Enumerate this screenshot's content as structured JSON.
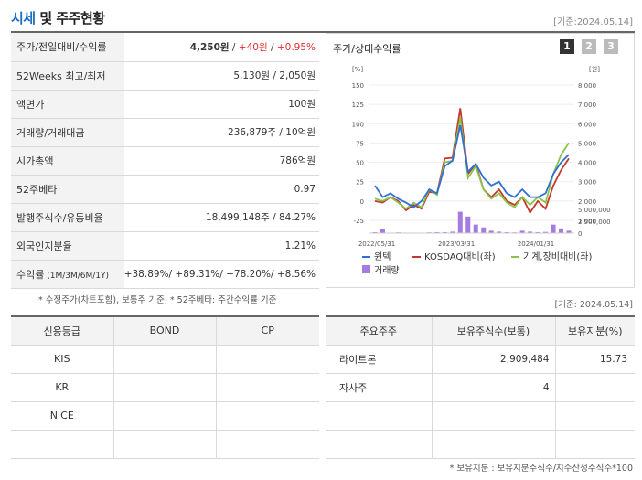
{
  "header": {
    "title_part1": "시세",
    "title_part2": " 및 주주현황",
    "date": "[기준:2024.05.14]"
  },
  "info_rows": [
    {
      "label": "주가/전일대비/수익률",
      "price": "4,250원",
      "sep1": " / ",
      "change": "+40원",
      "sep2": " / ",
      "rate": "+0.95%"
    },
    {
      "label": "52Weeks 최고/최저",
      "value": "5,130원 / 2,050원"
    },
    {
      "label": "액면가",
      "value": "100원"
    },
    {
      "label": "거래량/거래대금",
      "value": "236,879주 / 10억원"
    },
    {
      "label": "시가총액",
      "value": "786억원"
    },
    {
      "label": "52주베타",
      "value": "0.97"
    },
    {
      "label": "발행주식수/유동비율",
      "value": "18,499,148주 / 84.27%"
    },
    {
      "label": "외국인지분율",
      "value": "1.21%"
    },
    {
      "label": "수익률",
      "label_sub": " (1M/3M/6M/1Y)",
      "returns": "+38.89%/ +89.31%/ +78.20%/ +8.56%"
    }
  ],
  "note1": "* 수정주가(차트포함), 보통주 기준, * 52주베타: 주간수익률 기준",
  "chart_panel": {
    "title": "주가/상대수익률",
    "buttons": [
      "1",
      "2",
      "3"
    ],
    "left_unit": "[%]",
    "right_unit": "[원]",
    "left_ticks": [
      "150",
      "125",
      "100",
      "75",
      "50",
      "25",
      "0",
      "-25"
    ],
    "right_ticks": [
      "8,000",
      "7,000",
      "6,000",
      "5,000",
      "4,000",
      "3,000",
      "2,000",
      "1,000"
    ],
    "volume_ticks": [
      "5,000,000",
      "2,500,000",
      "0"
    ],
    "x_ticks": [
      "2022/05/31",
      "2023/03/31",
      "2024/01/31"
    ],
    "legend": [
      "윈텍",
      "KOSDAQ대비(좌)",
      "기계,장비대비(좌)",
      "거래량"
    ],
    "colors": {
      "stock": "#2f6fd6",
      "kosdaq": "#c0392b",
      "sector": "#8bc34a",
      "volume": "#a57be0"
    }
  },
  "chart_data": {
    "type": "line",
    "x_ticks": [
      "2022/05/31",
      "2023/03/31",
      "2024/01/31"
    ],
    "ylim_left": [
      -25,
      150
    ],
    "ylim_right": [
      1000,
      8000
    ],
    "ylim_volume": [
      0,
      5000000
    ],
    "series": [
      {
        "name": "윈텍",
        "values": [
          20,
          5,
          10,
          3,
          -2,
          -8,
          0,
          15,
          10,
          45,
          52,
          98,
          38,
          48,
          30,
          20,
          25,
          10,
          5,
          15,
          5,
          5,
          10,
          35,
          50,
          60
        ]
      },
      {
        "name": "KOSDAQ대비(좌)",
        "values": [
          0,
          -2,
          5,
          0,
          -12,
          -5,
          -10,
          12,
          10,
          55,
          56,
          120,
          35,
          48,
          15,
          5,
          15,
          0,
          -5,
          5,
          -15,
          0,
          -10,
          20,
          40,
          55
        ]
      },
      {
        "name": "기계,장비대비(좌)",
        "values": [
          3,
          0,
          5,
          -2,
          -10,
          -2,
          -8,
          15,
          8,
          50,
          52,
          108,
          30,
          45,
          15,
          3,
          10,
          -2,
          -8,
          5,
          -5,
          5,
          -2,
          35,
          60,
          75
        ]
      },
      {
        "name": "거래량",
        "values": [
          200000,
          800000,
          100000,
          150000,
          100000,
          100000,
          100000,
          150000,
          200000,
          200000,
          300000,
          4500000,
          3500000,
          1800000,
          1200000,
          500000,
          300000,
          200000,
          150000,
          500000,
          300000,
          200000,
          250000,
          1800000,
          1000000,
          500000
        ]
      }
    ]
  },
  "note2": "[기준: 2024.05.14]",
  "credit_table": {
    "headers": [
      "신용등급",
      "BOND",
      "CP"
    ],
    "rows": [
      [
        "KIS",
        "",
        ""
      ],
      [
        "KR",
        "",
        ""
      ],
      [
        "NICE",
        "",
        ""
      ],
      [
        "",
        "",
        ""
      ]
    ]
  },
  "holder_table": {
    "headers": [
      "주요주주",
      "보유주식수(보통)",
      "보유지분(%)"
    ],
    "rows": [
      [
        "라이트론",
        "2,909,484",
        "15.73"
      ],
      [
        "자사주",
        "4",
        ""
      ],
      [
        "",
        "",
        ""
      ],
      [
        "",
        "",
        ""
      ]
    ]
  },
  "note3": "* 보유지분 : 보유지분주식수/지수산정주식수*100"
}
